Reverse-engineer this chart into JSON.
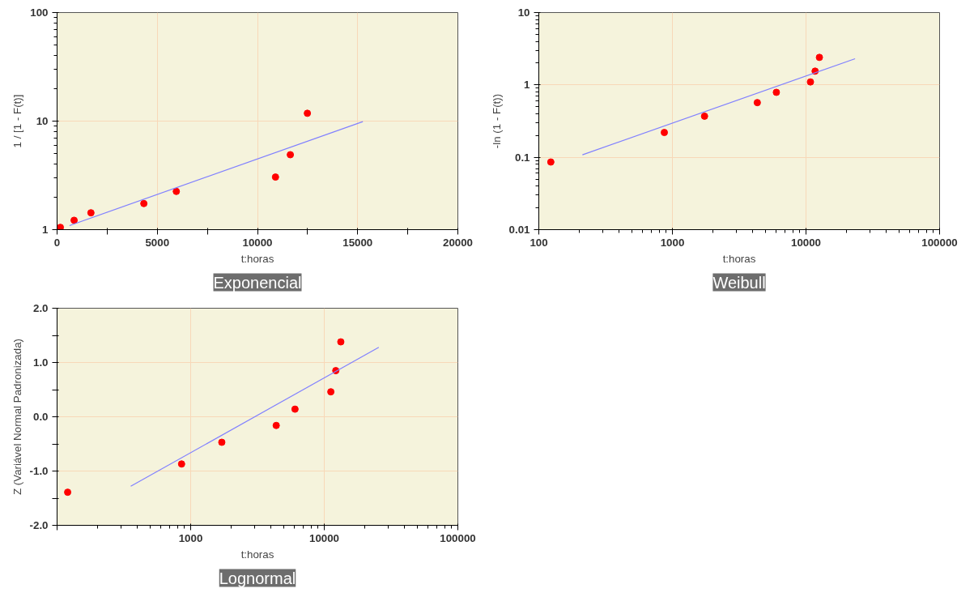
{
  "chart_data": [
    {
      "type": "scatter",
      "title": "Exponencial",
      "xlabel": "t:horas",
      "ylabel": "1 / [1 - F(t)]",
      "log": "y",
      "grid": true,
      "marker": "circle",
      "xlim": [
        0,
        20000
      ],
      "ylim": [
        1,
        100
      ],
      "xticks": [
        0,
        {
          "value": 2500,
          "label": null
        },
        5000,
        {
          "value": 7500,
          "label": null
        },
        10000,
        {
          "value": 12500,
          "label": null
        },
        15000,
        {
          "value": 17500,
          "label": null
        },
        20000
      ],
      "yticks": [
        1,
        10,
        100
      ],
      "series": [
        {
          "color": "#ff0000",
          "x": [
            164,
            850,
            1690,
            4330,
            5950,
            10900,
            11640,
            12490
          ],
          "values": [
            1.05,
            1.22,
            1.43,
            1.74,
            2.25,
            3.05,
            4.9,
            11.8
          ]
        },
        {
          "type": "line",
          "color": "#8080ff",
          "line_style": "solid",
          "marker": "none",
          "x": [
            620,
            15260
          ],
          "values": [
            1.09,
            9.9
          ]
        }
      ]
    },
    {
      "type": "scatter",
      "title": "Weibull",
      "xlabel": "t:horas",
      "ylabel": "-ln (1 - F(t))",
      "log": "xy",
      "grid": true,
      "marker": "circle",
      "xlim": [
        100,
        100000
      ],
      "ylim": [
        0.01,
        10
      ],
      "xticks": [
        100,
        1000,
        10000,
        100000
      ],
      "yticks": [
        0.01,
        0.1,
        1,
        10
      ],
      "series": [
        {
          "color": "#ff0000",
          "x": [
            123,
            870,
            1740,
            4320,
            6000,
            10800,
            11700,
            12600
          ],
          "values": [
            0.086,
            0.22,
            0.37,
            0.57,
            0.79,
            1.1,
            1.55,
            2.4
          ]
        },
        {
          "type": "line",
          "color": "#8080ff",
          "line_style": "solid",
          "marker": "none",
          "x": [
            212,
            23300
          ],
          "values": [
            0.108,
            2.3
          ]
        }
      ]
    },
    {
      "type": "scatter",
      "title": "Lognormal",
      "xlabel": "t:horas",
      "ylabel": "Z (Variável Normal Padronizada)",
      "log": "x",
      "grid": true,
      "marker": "circle",
      "xlim": [
        100,
        100000
      ],
      "ylim": [
        -2,
        2
      ],
      "xticks": [
        {
          "value": 100,
          "label": null
        },
        1000,
        10000,
        100000
      ],
      "yticks": [
        {
          "value": -2,
          "label": "-2.0"
        },
        {
          "value": -1.5,
          "label": null
        },
        {
          "value": -1,
          "label": "-1.0"
        },
        {
          "value": -0.5,
          "label": null
        },
        {
          "value": 0,
          "label": "0.0"
        },
        {
          "value": 0.5,
          "label": null
        },
        {
          "value": 1,
          "label": "1.0"
        },
        {
          "value": 1.5,
          "label": null
        },
        {
          "value": 2,
          "label": "2.0"
        }
      ],
      "series": [
        {
          "color": "#ff0000",
          "x": [
            120,
            855,
            1710,
            4370,
            6040,
            11200,
            12200,
            13300
          ],
          "values": [
            -1.39,
            -0.87,
            -0.47,
            -0.16,
            0.14,
            0.46,
            0.85,
            1.38
          ]
        },
        {
          "type": "line",
          "color": "#8080ff",
          "line_style": "solid",
          "marker": "none",
          "x": [
            356,
            25600
          ],
          "values": [
            -1.28,
            1.28
          ]
        }
      ]
    }
  ]
}
